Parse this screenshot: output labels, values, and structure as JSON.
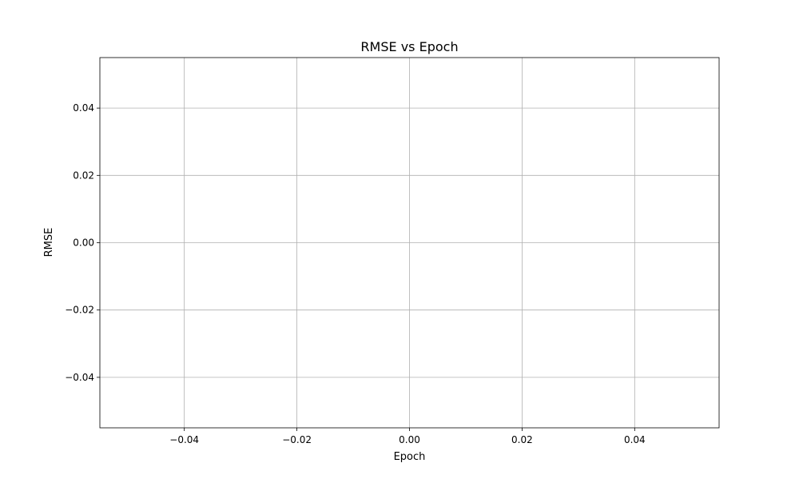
{
  "chart_data": {
    "type": "line",
    "title": "RMSE vs Epoch",
    "xlabel": "Epoch",
    "ylabel": "RMSE",
    "xlim": [
      -0.055,
      0.055
    ],
    "ylim": [
      -0.055,
      0.055
    ],
    "xticks": [
      -0.04,
      -0.02,
      0.0,
      0.02,
      0.04
    ],
    "yticks": [
      -0.04,
      -0.02,
      0.0,
      0.02,
      0.04
    ],
    "xtick_labels": [
      "−0.04",
      "−0.02",
      "0.00",
      "0.02",
      "0.04"
    ],
    "ytick_labels": [
      "−0.04",
      "−0.02",
      "0.00",
      "0.02",
      "0.04"
    ],
    "grid": true,
    "series": [
      {
        "x": [],
        "y": []
      }
    ],
    "colors": {
      "grid": "#b0b0b0",
      "axes": "#000000",
      "background": "#ffffff"
    }
  }
}
